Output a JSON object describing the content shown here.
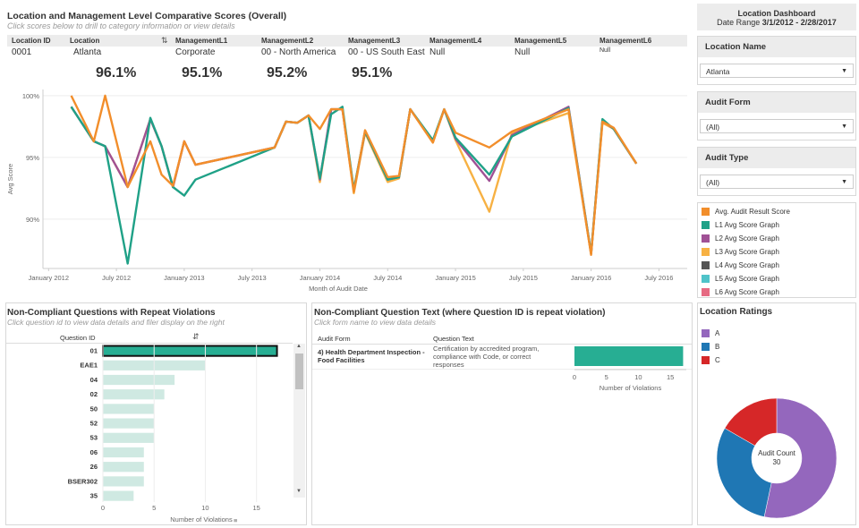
{
  "main": {
    "title": "Location and Management Level Comparative Scores (Overall)",
    "subtitle": "Click scores below to drill to category information or view details",
    "columns": [
      {
        "label": "Location ID",
        "value": "0001"
      },
      {
        "label": "Location",
        "value": "Atlanta"
      },
      {
        "label": "ManagementL1",
        "value": "Corporate",
        "score": "96.1%"
      },
      {
        "label": "ManagementL2",
        "value": "00 - North America",
        "score": "95.1%"
      },
      {
        "label": "ManagementL3",
        "value": "00 - US South East",
        "score": "95.2%"
      },
      {
        "label": "ManagementL4",
        "value": "Null",
        "score": "95.1%"
      },
      {
        "label": "ManagementL5",
        "value": "Null"
      },
      {
        "label": "ManagementL6",
        "value": "Null"
      }
    ]
  },
  "sidebar": {
    "dashboard_title": "Location Dashboard",
    "date_range_label": "Date Range",
    "date_range_value": "3/1/2012 - 2/28/2017",
    "filters": [
      {
        "label": "Location Name",
        "value": "Atlanta"
      },
      {
        "label": "Audit Form",
        "value": "(All)"
      },
      {
        "label": "Audit Type",
        "value": "(All)"
      }
    ],
    "legend": [
      {
        "label": "Avg. Audit Result Score",
        "color": "#f28e2b"
      },
      {
        "label": "L1 Avg Score Graph",
        "color": "#1fa187"
      },
      {
        "label": "L2 Avg Score Graph",
        "color": "#a05195"
      },
      {
        "label": "L3 Avg Score Graph",
        "color": "#f7b143"
      },
      {
        "label": "L4 Avg Score Graph",
        "color": "#555555"
      },
      {
        "label": "L5 Avg Score Graph",
        "color": "#4fc3c9"
      },
      {
        "label": "L6 Avg Score Graph",
        "color": "#e66a82"
      }
    ]
  },
  "ratings": {
    "title": "Location Ratings",
    "legend": [
      {
        "label": "A",
        "color": "#9467bd"
      },
      {
        "label": "B",
        "color": "#1f77b4"
      },
      {
        "label": "C",
        "color": "#d62728"
      }
    ],
    "center_label": "Audit Count",
    "center_value": "30"
  },
  "repeat": {
    "title": "Non-Compliant Questions with Repeat Violations",
    "subtitle": "Click question id to view data details and filer display on the right",
    "column_header": "Question ID",
    "xlabel": "Number of Violations"
  },
  "text_panel": {
    "title": "Non-Compliant Question Text (where Question ID is repeat violation)",
    "subtitle": "Click form name to view data details",
    "col_form": "Audit Form",
    "col_text": "Question Text",
    "form_name": "4) Health Department Inspection - Food Facilities",
    "question_text": "Certification by accredited program, compliance with Code, or correct responses",
    "xlabel": "Number of Violations"
  },
  "chart_data": [
    {
      "type": "line",
      "ylabel": "Avg Score",
      "xlabel": "Month of Audit Date",
      "ylim": [
        86,
        100.5
      ],
      "yticks": [
        "90%",
        "95%",
        "100%"
      ],
      "xtick_labels": [
        "January 2012",
        "July 2012",
        "January 2013",
        "July 2013",
        "January 2014",
        "July 2014",
        "January 2015",
        "July 2015",
        "January 2016",
        "July 2016"
      ],
      "x": [
        "2012-03",
        "2012-05",
        "2012-06",
        "2012-08",
        "2012-10",
        "2012-11",
        "2012-12",
        "2013-01",
        "2013-02",
        "2013-09",
        "2013-10",
        "2013-11",
        "2013-12",
        "2014-01",
        "2014-02",
        "2014-03",
        "2014-04",
        "2014-05",
        "2014-07",
        "2014-08",
        "2014-09",
        "2014-11",
        "2014-12",
        "2015-01",
        "2015-04",
        "2015-06",
        "2015-11",
        "2016-01",
        "2016-02",
        "2016-03",
        "2016-05"
      ],
      "series": [
        {
          "name": "Avg. Audit Result Score",
          "color": "#f28e2b",
          "values": [
            100,
            96.3,
            100,
            92.6,
            96.3,
            93.6,
            92.7,
            96.3,
            94.4,
            95.8,
            97.9,
            97.8,
            98.4,
            97.3,
            98.9,
            98.9,
            92.2,
            97.2,
            93.4,
            93.5,
            98.9,
            96.2,
            98.9,
            97.0,
            95.8,
            97.1,
            98.9,
            87.1,
            97.9,
            97.4,
            94.5
          ]
        },
        {
          "name": "L1 Avg Score Graph",
          "color": "#1fa187",
          "values": [
            99.1,
            96.3,
            95.9,
            86.4,
            98.2,
            95.9,
            92.6,
            91.9,
            93.2,
            95.8,
            97.9,
            97.8,
            98.4,
            93.3,
            98.5,
            99.1,
            92.4,
            97.1,
            93.2,
            93.4,
            98.9,
            96.4,
            98.9,
            96.6,
            93.6,
            96.7,
            99.0,
            87.2,
            98.1,
            97.3,
            94.5
          ]
        },
        {
          "name": "L2 Avg Score Graph",
          "color": "#a05195",
          "values": [
            99.1,
            96.3,
            95.9,
            92.6,
            98.1,
            95.9,
            92.6,
            96.3,
            94.4,
            95.8,
            97.9,
            97.8,
            98.4,
            93.2,
            98.9,
            98.9,
            92.3,
            97.1,
            93.2,
            93.4,
            98.9,
            96.3,
            98.9,
            96.5,
            93.1,
            96.8,
            99.1,
            87.2,
            98.0,
            97.3,
            94.5
          ]
        },
        {
          "name": "L3 Avg Score Graph",
          "color": "#f7b143",
          "values": [
            99.1,
            96.3,
            95.9,
            92.6,
            98.1,
            95.9,
            92.6,
            96.3,
            94.4,
            95.8,
            97.9,
            97.8,
            98.4,
            93.0,
            98.9,
            98.9,
            92.1,
            97.0,
            93.0,
            93.3,
            98.9,
            96.2,
            98.9,
            96.4,
            90.6,
            97.0,
            98.6,
            87.2,
            97.8,
            97.3,
            94.5
          ]
        }
      ]
    },
    {
      "type": "bar",
      "orientation": "horizontal",
      "categories": [
        "01",
        "EAE1",
        "04",
        "02",
        "50",
        "52",
        "53",
        "06",
        "26",
        "BSER302",
        "35"
      ],
      "values": [
        17,
        10,
        7,
        6,
        5,
        5,
        5,
        4,
        4,
        4,
        3
      ],
      "xlabel": "Number of Violations",
      "xticks": [
        "0",
        "5",
        "10",
        "15"
      ],
      "xlim": [
        0,
        18
      ]
    },
    {
      "type": "bar",
      "orientation": "horizontal",
      "categories": [
        "4) Health Department Inspection - Food Facilities"
      ],
      "values": [
        17
      ],
      "xlabel": "Number of Violations",
      "xticks": [
        "0",
        "5",
        "10",
        "15"
      ],
      "xlim": [
        0,
        17.5
      ]
    },
    {
      "type": "pie",
      "donut": true,
      "categories": [
        "A",
        "B",
        "C"
      ],
      "values": [
        16,
        9,
        5
      ],
      "colors": [
        "#9467bd",
        "#1f77b4",
        "#d62728"
      ]
    }
  ]
}
